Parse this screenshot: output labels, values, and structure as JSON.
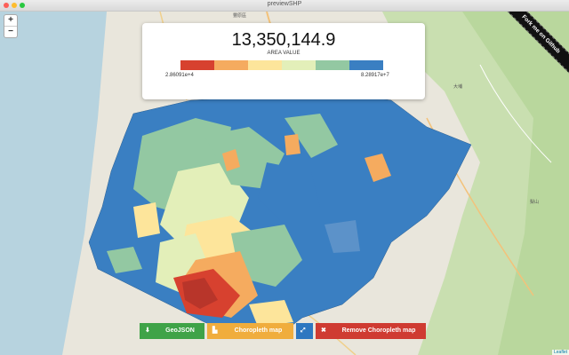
{
  "window": {
    "title": "previewSHP"
  },
  "zoom": {
    "in": "+",
    "out": "−"
  },
  "ribbon": {
    "label": "Fork me on Github"
  },
  "info": {
    "value": "13,350,144.9",
    "label": "AREA VALUE",
    "min": "2.86091e+4",
    "max": "8.28917e+7"
  },
  "legend_colors": [
    "#d7412f",
    "#f5ab5f",
    "#fde59b",
    "#e3efb9",
    "#93c8a2",
    "#3a7fc2"
  ],
  "toolbar": {
    "geojson": "GeoJSON",
    "choropleth": "Choropleth map",
    "remove": "Remove Choropleth map",
    "download_icon": "download-icon",
    "chart_icon": "chart-icon",
    "expand_icon": "expand-icon",
    "close_icon": "close-icon",
    "green": "#3fa348",
    "yellow": "#f0ad3d",
    "blue": "#2e77c0",
    "red": "#cf3b32"
  },
  "map_labels": {
    "top": "豐原區",
    "right": "大埔",
    "east": "梨山"
  },
  "attribution": "Leaflet"
}
